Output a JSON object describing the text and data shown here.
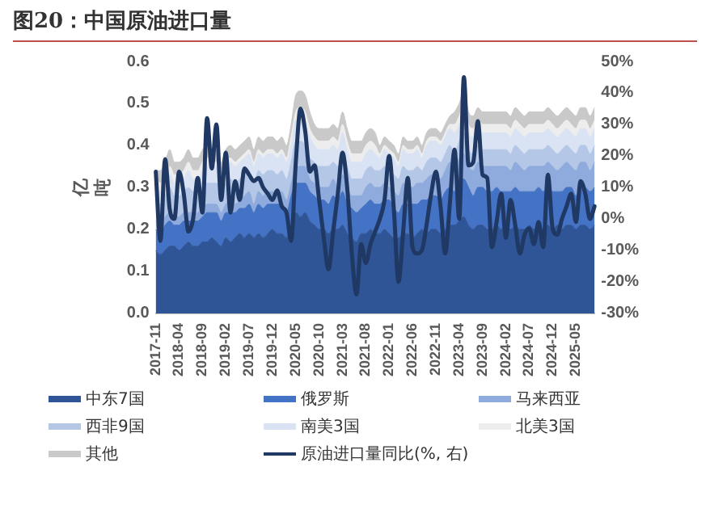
{
  "chart_data": {
    "type": "area",
    "title": "图20：中国原油进口量",
    "ylabel": "亿吨",
    "stacked": true,
    "legend": "bottom",
    "categories": [
      "2017-11",
      null,
      null,
      null,
      null,
      "2018-04",
      null,
      null,
      null,
      null,
      "2018-09",
      null,
      null,
      null,
      null,
      "2019-02",
      null,
      null,
      null,
      null,
      "2019-07",
      null,
      null,
      null,
      null,
      "2019-12",
      null,
      null,
      null,
      null,
      "2020-05",
      null,
      null,
      null,
      null,
      "2020-10",
      null,
      null,
      null,
      null,
      "2021-03",
      null,
      null,
      null,
      null,
      "2021-08",
      null,
      null,
      null,
      null,
      "2022-01",
      null,
      null,
      null,
      null,
      "2022-06",
      null,
      null,
      null,
      null,
      "2022-11",
      null,
      null,
      null,
      null,
      "2023-04",
      null,
      null,
      null,
      null,
      "2023-09",
      null,
      null,
      null,
      null,
      "2024-02",
      null,
      null,
      null,
      null,
      "2024-07",
      null,
      null,
      null,
      null,
      "2024-12",
      null,
      null,
      null,
      null,
      "2025-05",
      null,
      null,
      null,
      null
    ],
    "ylim": [
      0,
      0.6
    ],
    "yticks": [
      {
        "value": 0,
        "label": "0.0"
      },
      0.1,
      0.2,
      0.3,
      0.4,
      0.5,
      0.6
    ],
    "y2lim": [
      -30,
      50
    ],
    "y2ticks": [
      {
        "value": -30,
        "label": "-30%"
      },
      {
        "value": -20,
        "label": "-20%"
      },
      {
        "value": -10,
        "label": "-10%"
      },
      {
        "value": 0,
        "label": "0%"
      },
      {
        "value": 10,
        "label": "10%"
      },
      {
        "value": 20,
        "label": "20%"
      },
      {
        "value": 30,
        "label": "30%"
      },
      {
        "value": 40,
        "label": "40%"
      },
      {
        "value": 50,
        "label": "50%"
      }
    ],
    "series": [
      {
        "name": "中东7国",
        "color": "#2f5597",
        "values": [
          0.15,
          0.14,
          0.15,
          0.16,
          0.16,
          0.15,
          0.16,
          0.17,
          0.16,
          0.16,
          0.17,
          0.17,
          0.18,
          0.17,
          0.16,
          0.18,
          0.17,
          0.18,
          0.19,
          0.18,
          0.19,
          0.18,
          0.19,
          0.18,
          0.19,
          0.2,
          0.19,
          0.19,
          0.18,
          0.21,
          0.24,
          0.23,
          0.24,
          0.22,
          0.21,
          0.2,
          0.2,
          0.19,
          0.2,
          0.2,
          0.21,
          0.19,
          0.18,
          0.17,
          0.19,
          0.19,
          0.2,
          0.19,
          0.19,
          0.2,
          0.19,
          0.18,
          0.18,
          0.19,
          0.19,
          0.18,
          0.19,
          0.2,
          0.19,
          0.2,
          0.2,
          0.19,
          0.2,
          0.21,
          0.21,
          0.22,
          0.23,
          0.21,
          0.2,
          0.21,
          0.21,
          0.2,
          0.2,
          0.21,
          0.2,
          0.21,
          0.2,
          0.21,
          0.2,
          0.2,
          0.21,
          0.2,
          0.21,
          0.2,
          0.21,
          0.2,
          0.21,
          0.2,
          0.21,
          0.21,
          0.2,
          0.21,
          0.21,
          0.2,
          0.21
        ]
      },
      {
        "name": "俄罗斯",
        "color": "#4472c4",
        "values": [
          0.05,
          0.05,
          0.06,
          0.06,
          0.05,
          0.06,
          0.06,
          0.05,
          0.06,
          0.06,
          0.06,
          0.07,
          0.06,
          0.07,
          0.06,
          0.06,
          0.07,
          0.06,
          0.06,
          0.07,
          0.07,
          0.06,
          0.07,
          0.07,
          0.07,
          0.06,
          0.07,
          0.07,
          0.06,
          0.07,
          0.07,
          0.08,
          0.07,
          0.07,
          0.07,
          0.07,
          0.07,
          0.07,
          0.08,
          0.07,
          0.08,
          0.07,
          0.07,
          0.07,
          0.06,
          0.07,
          0.07,
          0.07,
          0.07,
          0.07,
          0.08,
          0.07,
          0.06,
          0.07,
          0.07,
          0.08,
          0.07,
          0.07,
          0.08,
          0.08,
          0.08,
          0.08,
          0.09,
          0.09,
          0.08,
          0.09,
          0.09,
          0.09,
          0.08,
          0.09,
          0.09,
          0.09,
          0.09,
          0.09,
          0.09,
          0.08,
          0.09,
          0.09,
          0.09,
          0.09,
          0.08,
          0.09,
          0.09,
          0.09,
          0.09,
          0.09,
          0.08,
          0.09,
          0.09,
          0.09,
          0.08,
          0.09,
          0.09,
          0.09,
          0.09
        ]
      },
      {
        "name": "马来西亚",
        "color": "#8faadc",
        "values": [
          0.02,
          0.02,
          0.02,
          0.02,
          0.02,
          0.02,
          0.02,
          0.02,
          0.02,
          0.02,
          0.02,
          0.02,
          0.02,
          0.02,
          0.02,
          0.02,
          0.03,
          0.02,
          0.02,
          0.03,
          0.03,
          0.02,
          0.03,
          0.03,
          0.03,
          0.03,
          0.02,
          0.03,
          0.03,
          0.03,
          0.04,
          0.04,
          0.04,
          0.03,
          0.03,
          0.03,
          0.03,
          0.04,
          0.04,
          0.03,
          0.04,
          0.04,
          0.03,
          0.04,
          0.03,
          0.04,
          0.04,
          0.04,
          0.04,
          0.04,
          0.03,
          0.04,
          0.04,
          0.05,
          0.04,
          0.04,
          0.05,
          0.04,
          0.05,
          0.05,
          0.05,
          0.05,
          0.05,
          0.06,
          0.05,
          0.06,
          0.06,
          0.05,
          0.06,
          0.06,
          0.05,
          0.06,
          0.06,
          0.05,
          0.06,
          0.06,
          0.05,
          0.06,
          0.06,
          0.05,
          0.06,
          0.06,
          0.05,
          0.06,
          0.06,
          0.06,
          0.05,
          0.06,
          0.06,
          0.05,
          0.06,
          0.06,
          0.06,
          0.05,
          0.06
        ]
      },
      {
        "name": "西非9国",
        "color": "#b4c7e7",
        "values": [
          0.05,
          0.05,
          0.05,
          0.06,
          0.05,
          0.05,
          0.05,
          0.06,
          0.05,
          0.05,
          0.05,
          0.05,
          0.05,
          0.05,
          0.05,
          0.05,
          0.05,
          0.05,
          0.05,
          0.05,
          0.05,
          0.05,
          0.05,
          0.05,
          0.05,
          0.05,
          0.05,
          0.05,
          0.05,
          0.05,
          0.06,
          0.06,
          0.05,
          0.05,
          0.05,
          0.05,
          0.05,
          0.05,
          0.04,
          0.05,
          0.05,
          0.05,
          0.04,
          0.04,
          0.04,
          0.04,
          0.04,
          0.04,
          0.04,
          0.04,
          0.04,
          0.04,
          0.04,
          0.04,
          0.04,
          0.04,
          0.04,
          0.03,
          0.04,
          0.04,
          0.04,
          0.04,
          0.04,
          0.04,
          0.04,
          0.04,
          0.05,
          0.04,
          0.04,
          0.04,
          0.04,
          0.04,
          0.04,
          0.04,
          0.04,
          0.04,
          0.04,
          0.04,
          0.04,
          0.04,
          0.04,
          0.04,
          0.04,
          0.04,
          0.04,
          0.04,
          0.04,
          0.04,
          0.04,
          0.04,
          0.04,
          0.04,
          0.04,
          0.04,
          0.04
        ]
      },
      {
        "name": "南美3国",
        "color": "#dae3f3",
        "values": [
          0.03,
          0.03,
          0.03,
          0.03,
          0.03,
          0.03,
          0.03,
          0.04,
          0.03,
          0.03,
          0.04,
          0.04,
          0.04,
          0.04,
          0.03,
          0.04,
          0.04,
          0.04,
          0.04,
          0.04,
          0.04,
          0.04,
          0.04,
          0.04,
          0.04,
          0.04,
          0.04,
          0.04,
          0.04,
          0.04,
          0.05,
          0.05,
          0.05,
          0.05,
          0.04,
          0.04,
          0.04,
          0.04,
          0.04,
          0.04,
          0.05,
          0.04,
          0.04,
          0.04,
          0.04,
          0.04,
          0.04,
          0.04,
          0.03,
          0.04,
          0.04,
          0.04,
          0.03,
          0.04,
          0.04,
          0.04,
          0.04,
          0.03,
          0.04,
          0.04,
          0.04,
          0.04,
          0.04,
          0.04,
          0.05,
          0.04,
          0.05,
          0.04,
          0.04,
          0.04,
          0.04,
          0.04,
          0.04,
          0.04,
          0.04,
          0.04,
          0.04,
          0.04,
          0.04,
          0.04,
          0.04,
          0.04,
          0.04,
          0.04,
          0.04,
          0.04,
          0.04,
          0.04,
          0.04,
          0.04,
          0.04,
          0.04,
          0.04,
          0.04,
          0.04
        ]
      },
      {
        "name": "北美3国",
        "color": "#ededed",
        "values": [
          0.02,
          0.02,
          0.02,
          0.02,
          0.02,
          0.02,
          0.02,
          0.02,
          0.02,
          0.02,
          0.02,
          0.02,
          0.01,
          0.01,
          0.01,
          0.01,
          0.01,
          0.01,
          0.01,
          0.01,
          0.01,
          0.01,
          0.01,
          0.01,
          0.01,
          0.01,
          0.01,
          0.01,
          0.01,
          0.02,
          0.02,
          0.03,
          0.03,
          0.02,
          0.02,
          0.02,
          0.02,
          0.02,
          0.02,
          0.02,
          0.02,
          0.02,
          0.02,
          0.02,
          0.02,
          0.02,
          0.02,
          0.02,
          0.01,
          0.01,
          0.01,
          0.01,
          0.01,
          0.01,
          0.01,
          0.01,
          0.01,
          0.01,
          0.01,
          0.01,
          0.01,
          0.01,
          0.01,
          0.01,
          0.02,
          0.02,
          0.02,
          0.02,
          0.02,
          0.02,
          0.02,
          0.02,
          0.02,
          0.02,
          0.02,
          0.02,
          0.02,
          0.02,
          0.02,
          0.02,
          0.02,
          0.02,
          0.02,
          0.02,
          0.02,
          0.02,
          0.02,
          0.02,
          0.02,
          0.02,
          0.02,
          0.02,
          0.02,
          0.02,
          0.02
        ]
      },
      {
        "name": "其他",
        "color": "#c9c9c9",
        "values": [
          0.02,
          0.03,
          0.03,
          0.04,
          0.03,
          0.03,
          0.03,
          0.03,
          0.03,
          0.03,
          0.03,
          0.03,
          0.03,
          0.03,
          0.03,
          0.03,
          0.03,
          0.03,
          0.03,
          0.03,
          0.03,
          0.03,
          0.03,
          0.03,
          0.03,
          0.03,
          0.03,
          0.03,
          0.03,
          0.03,
          0.04,
          0.04,
          0.04,
          0.04,
          0.03,
          0.03,
          0.03,
          0.03,
          0.03,
          0.03,
          0.03,
          0.03,
          0.03,
          0.03,
          0.03,
          0.03,
          0.03,
          0.03,
          0.02,
          0.02,
          0.02,
          0.02,
          0.02,
          0.02,
          0.02,
          0.02,
          0.02,
          0.02,
          0.02,
          0.02,
          0.02,
          0.02,
          0.02,
          0.02,
          0.03,
          0.03,
          0.03,
          0.03,
          0.03,
          0.03,
          0.03,
          0.03,
          0.03,
          0.03,
          0.03,
          0.03,
          0.03,
          0.03,
          0.03,
          0.03,
          0.03,
          0.03,
          0.03,
          0.03,
          0.03,
          0.03,
          0.03,
          0.03,
          0.03,
          0.03,
          0.03,
          0.03,
          0.03,
          0.03,
          0.03
        ]
      },
      {
        "name": "原油进口量同比(%, 右)",
        "type": "line",
        "axis": "y2",
        "color": "#1f3864",
        "values": [
          15,
          -7,
          19,
          3,
          0,
          15,
          8,
          -4,
          0,
          13,
          2,
          32,
          16,
          30,
          6,
          21,
          2,
          12,
          6,
          16,
          14,
          12,
          13,
          10,
          8,
          6,
          9,
          4,
          2,
          -7,
          18,
          35,
          28,
          15,
          17,
          6,
          -6,
          -16,
          -4,
          8,
          21,
          10,
          -11,
          -24,
          -8,
          -14,
          -8,
          -4,
          0,
          6,
          20,
          3,
          -20,
          -4,
          13,
          -9,
          -11,
          -10,
          -2,
          8,
          15,
          4,
          -11,
          5,
          22,
          0,
          45,
          17,
          18,
          31,
          14,
          13,
          -9,
          -1,
          8,
          -6,
          6,
          -2,
          -11,
          -5,
          -3,
          -8,
          -1,
          -9,
          14,
          -3,
          -5,
          0,
          4,
          8,
          -1,
          12,
          8,
          0,
          4
        ]
      }
    ]
  }
}
